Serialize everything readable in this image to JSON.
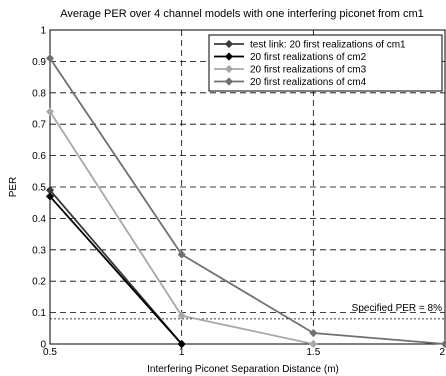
{
  "chart_data": {
    "type": "line",
    "title": "Average PER over 4 channel models with one interfering piconet from cm1",
    "xlabel": "Interfering Piconet Separation Distance (m)",
    "ylabel": "PER",
    "xlim": [
      0.5,
      2
    ],
    "ylim": [
      0,
      1
    ],
    "xticks": [
      "0.5",
      "1",
      "1.5",
      "2"
    ],
    "yticks": [
      "0",
      "0.1",
      "0.2",
      "0.3",
      "0.4",
      "0.5",
      "0.6",
      "0.7",
      "0.8",
      "0.9",
      "1"
    ],
    "grid": "dashed",
    "legend_position": "top-right",
    "x": [
      0.5,
      1,
      1.5,
      2
    ],
    "series": [
      {
        "name": "test link: 20 first realizations of cm1",
        "color": "#3a3a3a",
        "values": [
          0.49,
          0,
          null,
          null
        ]
      },
      {
        "name": "20 first realizations of cm2",
        "color": "#000000",
        "values": [
          0.47,
          0,
          null,
          null
        ]
      },
      {
        "name": "20 first realizations of cm3",
        "color": "#a8a8a8",
        "values": [
          0.74,
          0.09,
          0,
          null
        ]
      },
      {
        "name": "20 first realizations of cm4",
        "color": "#707070",
        "values": [
          0.91,
          0.285,
          0.035,
          0
        ]
      }
    ],
    "reference_line": {
      "value": 0.08,
      "label": "Specified PER = 8%"
    }
  }
}
